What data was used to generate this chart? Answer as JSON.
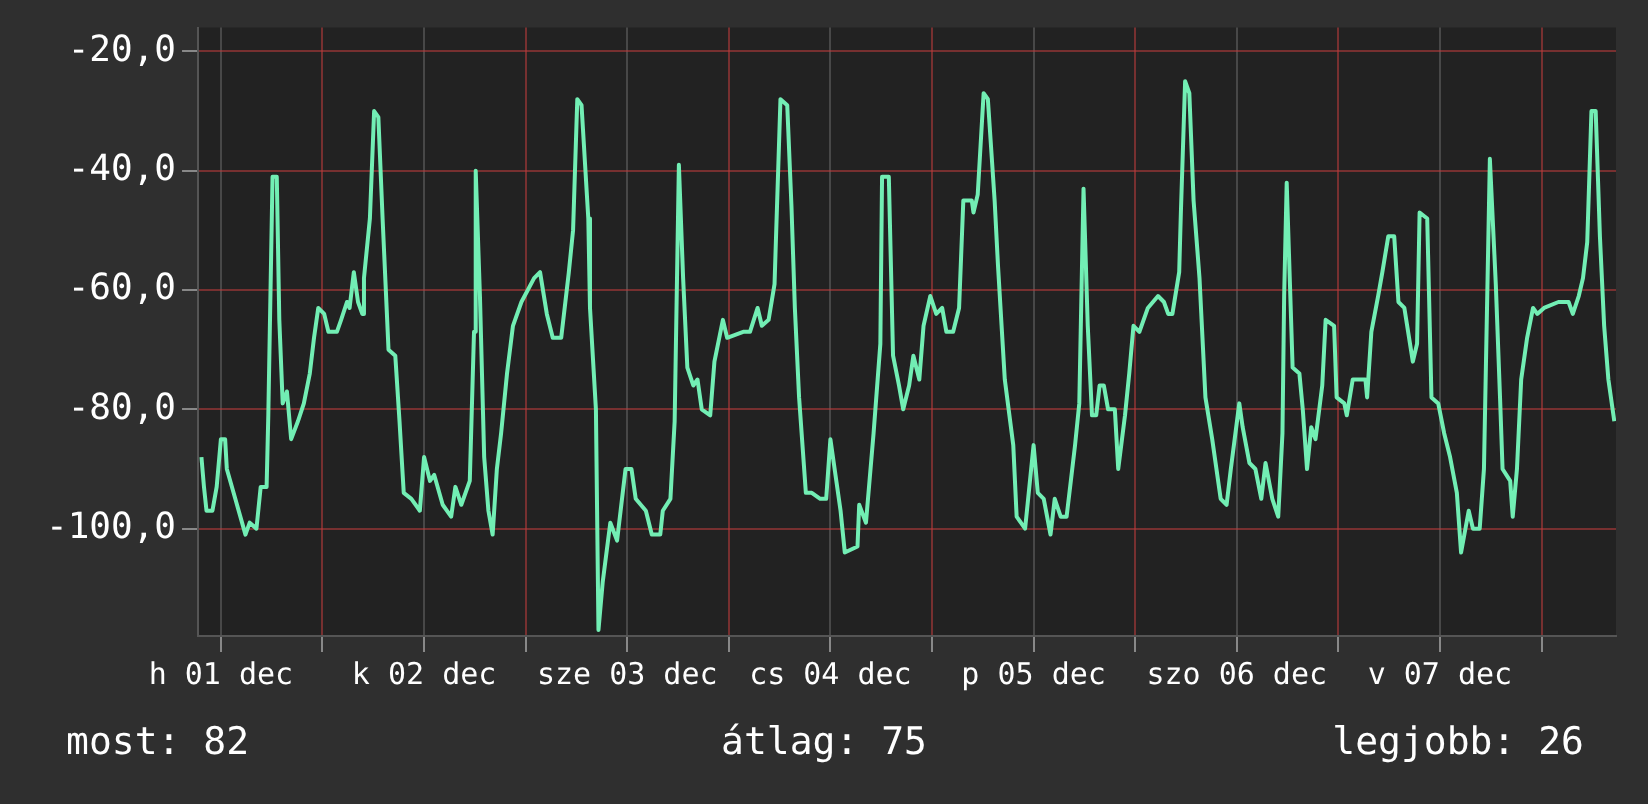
{
  "chart_data": {
    "type": "line",
    "color": "#72eeb4",
    "marker": "none",
    "line_style": "solid",
    "legend": false,
    "grid": true,
    "xlim": [
      "--12-01T09:18",
      "--12-08T08:48"
    ],
    "xticks": [
      {
        "value": "--12-01T12:00",
        "label": "h 01 dec"
      },
      {
        "value": "--12-02T00:00",
        "label": null
      },
      {
        "value": "--12-02T12:00",
        "label": "k 02 dec"
      },
      {
        "value": "--12-03T00:00",
        "label": null
      },
      {
        "value": "--12-03T12:00",
        "label": "sze 03 dec"
      },
      {
        "value": "--12-04T00:00",
        "label": null
      },
      {
        "value": "--12-04T12:00",
        "label": "cs 04 dec"
      },
      {
        "value": "--12-05T00:00",
        "label": null
      },
      {
        "value": "--12-05T12:00",
        "label": "p 05 dec"
      },
      {
        "value": "--12-06T00:00",
        "label": null
      },
      {
        "value": "--12-06T12:00",
        "label": "szo 06 dec"
      },
      {
        "value": "--12-07T00:00",
        "label": null
      },
      {
        "value": "--12-07T12:00",
        "label": "v 07 dec"
      },
      {
        "value": "--12-08T00:00",
        "label": null
      }
    ],
    "ylim": [
      -118,
      -16
    ],
    "yticks": [
      {
        "value": -20,
        "label": "-20,0"
      },
      {
        "value": -40,
        "label": "-40,0"
      },
      {
        "value": -60,
        "label": "-60,0"
      },
      {
        "value": -80,
        "label": "-80,0"
      },
      {
        "value": -100,
        "label": "-100,0"
      }
    ],
    "x": [
      "--12-01T09:42",
      "--12-01T10:00",
      "--12-01T10:18",
      "--12-01T11:00",
      "--12-01T11:30",
      "--12-01T12:00",
      "--12-01T12:30",
      "--12-01T12:42",
      "--12-01T13:42",
      "--12-01T14:54",
      "--12-01T15:24",
      "--12-01T16:12",
      "--12-01T16:42",
      "--12-01T17:24",
      "--12-01T17:36",
      "--12-01T18:06",
      "--12-01T18:36",
      "--12-01T18:54",
      "--12-01T19:18",
      "--12-01T19:48",
      "--12-01T20:18",
      "--12-01T21:06",
      "--12-01T21:48",
      "--12-01T22:30",
      "--12-01T23:00",
      "--12-01T23:30",
      "--12-02T00:12",
      "--12-02T00:42",
      "--12-02T01:42",
      "--12-02T02:12",
      "--12-02T02:54",
      "--12-02T03:12",
      "--12-02T03:42",
      "--12-02T04:12",
      "--12-02T04:42",
      "--12-02T04:54",
      "--12-02T05:36",
      "--12-02T06:06",
      "--12-02T06:36",
      "--12-02T07:06",
      "--12-02T07:48",
      "--12-02T08:36",
      "--12-02T09:06",
      "--12-02T09:36",
      "--12-02T10:30",
      "--12-02T11:30",
      "--12-02T12:00",
      "--12-02T12:42",
      "--12-02T13:12",
      "--12-02T14:12",
      "--12-02T15:12",
      "--12-02T15:42",
      "--12-02T16:24",
      "--12-02T17:24",
      "--12-02T17:54",
      "--12-02T18:06",
      "--12-02T18:36",
      "--12-02T19:06",
      "--12-02T19:36",
      "--12-02T20:06",
      "--12-02T20:36",
      "--12-02T21:06",
      "--12-02T21:48",
      "--12-02T22:30",
      "--12-02T23:30",
      "--12-03T01:00",
      "--12-03T01:42",
      "--12-03T02:30",
      "--12-03T03:12",
      "--12-03T04:12",
      "--12-03T05:06",
      "--12-03T05:36",
      "--12-03T06:06",
      "--12-03T06:36",
      "--12-03T07:24",
      "--12-03T07:36",
      "--12-03T08:18",
      "--12-03T08:36",
      "--12-03T09:06",
      "--12-03T10:00",
      "--12-03T10:48",
      "--12-03T11:48",
      "--12-03T12:30",
      "--12-03T13:00",
      "--12-03T14:12",
      "--12-03T14:54",
      "--12-03T15:54",
      "--12-03T16:12",
      "--12-03T17:06",
      "--12-03T17:36",
      "--12-03T18:06",
      "--12-03T18:36",
      "--12-03T19:06",
      "--12-03T19:48",
      "--12-03T20:18",
      "--12-03T20:48",
      "--12-03T21:48",
      "--12-03T22:18",
      "--12-03T23:18",
      "--12-03T23:48",
      "--12-04T01:42",
      "--12-04T02:30",
      "--12-04T03:24",
      "--12-04T03:54",
      "--12-04T04:42",
      "--12-04T05:24",
      "--12-04T05:36",
      "--12-04T06:06",
      "--12-04T06:54",
      "--12-04T07:24",
      "--12-04T07:48",
      "--12-04T08:18",
      "--12-04T09:06",
      "--12-04T09:48",
      "--12-04T10:48",
      "--12-04T11:30",
      "--12-04T12:00",
      "--12-04T12:42",
      "--12-04T13:12",
      "--12-04T13:42",
      "--12-04T15:12",
      "--12-04T15:24",
      "--12-04T16:12",
      "--12-04T17:06",
      "--12-04T17:54",
      "--12-04T18:06",
      "--12-04T18:54",
      "--12-04T19:24",
      "--12-04T20:06",
      "--12-04T20:36",
      "--12-04T21:18",
      "--12-04T21:48",
      "--12-04T22:30",
      "--12-04T23:00",
      "--12-04T23:48",
      "--12-05T00:30",
      "--12-05T01:12",
      "--12-05T01:42",
      "--12-05T02:30",
      "--12-05T03:12",
      "--12-05T03:42",
      "--12-05T04:42",
      "--12-05T04:54",
      "--12-05T05:24",
      "--12-05T06:06",
      "--12-05T06:36",
      "--12-05T07:24",
      "--12-05T07:48",
      "--12-05T08:36",
      "--12-05T09:36",
      "--12-05T10:00",
      "--12-05T11:00",
      "--12-05T12:00",
      "--12-05T12:30",
      "--12-05T13:12",
      "--12-05T14:00",
      "--12-05T14:30",
      "--12-05T15:12",
      "--12-05T15:54",
      "--12-05T16:24",
      "--12-05T16:54",
      "--12-05T17:24",
      "--12-05T17:54",
      "--12-05T18:24",
      "--12-05T18:54",
      "--12-05T19:24",
      "--12-05T19:48",
      "--12-05T20:18",
      "--12-05T20:48",
      "--12-05T21:36",
      "--12-05T22:00",
      "--12-05T22:48",
      "--12-05T23:18",
      "--12-05T23:48",
      "--12-06T00:30",
      "--12-06T01:30",
      "--12-06T02:42",
      "--12-06T03:24",
      "--12-06T03:54",
      "--12-06T04:24",
      "--12-06T05:12",
      "--12-06T05:24",
      "--12-06T05:54",
      "--12-06T06:24",
      "--12-06T06:54",
      "--12-06T07:36",
      "--12-06T08:18",
      "--12-06T09:06",
      "--12-06T10:06",
      "--12-06T10:48",
      "--12-06T11:18",
      "--12-06T12:18",
      "--12-06T12:42",
      "--12-06T13:30",
      "--12-06T14:12",
      "--12-06T14:54",
      "--12-06T15:24",
      "--12-06T16:12",
      "--12-06T16:54",
      "--12-06T17:24",
      "--12-06T17:36",
      "--12-06T17:54",
      "--12-06T18:36",
      "--12-06T19:24",
      "--12-06T19:48",
      "--12-06T20:18",
      "--12-06T20:48",
      "--12-06T21:18",
      "--12-06T22:06",
      "--12-06T22:30",
      "--12-06T23:30",
      "--12-06T23:48",
      "--12-07T00:42",
      "--12-07T01:00",
      "--12-07T01:42",
      "--12-07T03:12",
      "--12-07T03:24",
      "--12-07T03:54",
      "--12-07T04:42",
      "--12-07T05:12",
      "--12-07T05:54",
      "--12-07T06:36",
      "--12-07T07:06",
      "--12-07T07:48",
      "--12-07T08:48",
      "--12-07T09:18",
      "--12-07T09:36",
      "--12-07T10:30",
      "--12-07T11:00",
      "--12-07T11:48",
      "--12-07T12:30",
      "--12-07T13:12",
      "--12-07T14:00",
      "--12-07T14:30",
      "--12-07T15:24",
      "--12-07T15:54",
      "--12-07T16:42",
      "--12-07T17:12",
      "--12-07T17:54",
      "--12-07T18:36",
      "--12-07T19:06",
      "--12-07T19:24",
      "--12-07T20:18",
      "--12-07T20:36",
      "--12-07T21:06",
      "--12-07T21:36",
      "--12-07T22:18",
      "--12-07T23:00",
      "--12-07T23:30",
      "--12-08T00:18",
      "--12-08T02:00",
      "--12-08T03:12",
      "--12-08T03:42",
      "--12-08T04:24",
      "--12-08T04:54",
      "--12-08T05:24",
      "--12-08T05:54",
      "--12-08T06:24",
      "--12-08T06:54",
      "--12-08T07:24",
      "--12-08T07:54",
      "--12-08T08:36"
    ],
    "values": [
      -88,
      -93,
      -97,
      -97,
      -93,
      -85,
      -85,
      -90,
      -95,
      -101,
      -99,
      -100,
      -93,
      -93,
      -81,
      -41,
      -41,
      -65,
      -79,
      -77,
      -85,
      -82,
      -79,
      -74,
      -68,
      -63,
      -64,
      -67,
      -67,
      -65,
      -62,
      -63,
      -57,
      -62,
      -64,
      -58,
      -48,
      -30,
      -31,
      -48,
      -70,
      -71,
      -82,
      -94,
      -95,
      -97,
      -88,
      -92,
      -91,
      -96,
      -98,
      -93,
      -96,
      -92,
      -67,
      -40,
      -61,
      -88,
      -97,
      -101,
      -90,
      -84,
      -74,
      -66,
      -62,
      -58,
      -57,
      -64,
      -68,
      -68,
      -57,
      -50,
      -28,
      -29,
      -48,
      -63,
      -80,
      -117,
      -109,
      -99,
      -102,
      -90,
      -90,
      -95,
      -97,
      -101,
      -101,
      -97,
      -95,
      -82,
      -39,
      -58,
      -73,
      -76,
      -75,
      -80,
      -81,
      -72,
      -65,
      -68,
      -67,
      -67,
      -63,
      -66,
      -65,
      -59,
      -50,
      -28,
      -29,
      -46,
      -63,
      -78,
      -94,
      -94,
      -95,
      -95,
      -85,
      -92,
      -97,
      -104,
      -103,
      -96,
      -99,
      -84,
      -69,
      -41,
      -41,
      -71,
      -76,
      -80,
      -76,
      -71,
      -75,
      -66,
      -61,
      -64,
      -63,
      -67,
      -67,
      -63,
      -45,
      -45,
      -47,
      -44,
      -27,
      -28,
      -45,
      -56,
      -75,
      -86,
      -98,
      -100,
      -86,
      -94,
      -95,
      -101,
      -95,
      -98,
      -98,
      -92,
      -86,
      -79,
      -43,
      -66,
      -81,
      -81,
      -76,
      -76,
      -80,
      -80,
      -90,
      -81,
      -74,
      -66,
      -67,
      -63,
      -61,
      -62,
      -64,
      -64,
      -57,
      -47,
      -25,
      -27,
      -45,
      -58,
      -78,
      -85,
      -95,
      -96,
      -90,
      -79,
      -83,
      -89,
      -90,
      -95,
      -89,
      -95,
      -98,
      -84,
      -61,
      -42,
      -73,
      -74,
      -80,
      -90,
      -83,
      -85,
      -76,
      -65,
      -66,
      -78,
      -79,
      -81,
      -75,
      -75,
      -78,
      -67,
      -61,
      -57,
      -51,
      -51,
      -62,
      -63,
      -72,
      -69,
      -47,
      -48,
      -78,
      -79,
      -84,
      -88,
      -94,
      -104,
      -97,
      -100,
      -100,
      -90,
      -38,
      -59,
      -78,
      -90,
      -92,
      -98,
      -90,
      -75,
      -68,
      -63,
      -64,
      -63,
      -62,
      -62,
      -64,
      -61,
      -58,
      -52,
      -30,
      -30,
      -51,
      -66,
      -75,
      -82
    ],
    "annotations": [
      "most: 82",
      "átlag: 75",
      "legjobb: 26"
    ]
  }
}
